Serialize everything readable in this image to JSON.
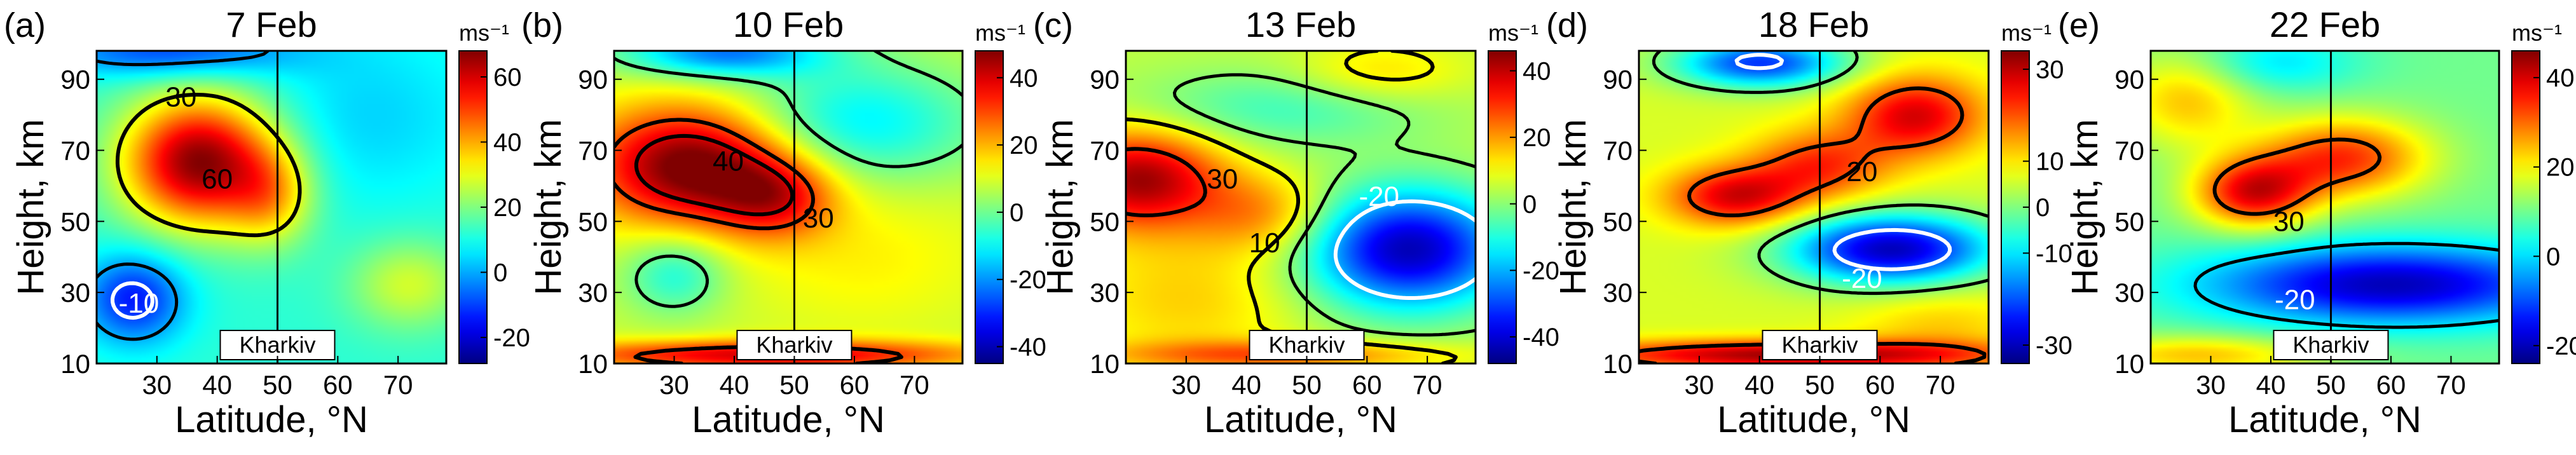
{
  "figure": {
    "x_axis_label": "Latitude, °N",
    "y_axis_label": "Height, km",
    "unit_label": "ms⁻¹",
    "station_label": "Kharkiv"
  },
  "chart_data": [
    {
      "type": "heatmap",
      "panel": "(a)",
      "title": "7 Feb",
      "xlabel": "Latitude, °N",
      "ylabel": "Height, km",
      "xlim": [
        20,
        78
      ],
      "ylim": [
        10,
        98
      ],
      "xticks": [
        30,
        40,
        50,
        60,
        70
      ],
      "yticks": [
        10,
        30,
        50,
        70,
        90
      ],
      "marker_latitude": 50,
      "marker_label": "Kharkiv",
      "colorbar": {
        "unit": "ms⁻¹",
        "min": -28,
        "max": 68,
        "ticks": [
          -20,
          0,
          20,
          40,
          60
        ]
      },
      "background": 12,
      "features": [
        {
          "lat": 37,
          "h": 67,
          "sx": 9,
          "sy": 13,
          "amp": 56
        },
        {
          "lat": 49,
          "h": 57,
          "sx": 5,
          "sy": 10,
          "amp": 20
        },
        {
          "lat": 26,
          "h": 28,
          "sx": 6,
          "sy": 9,
          "amp": -26
        },
        {
          "lat": 32,
          "h": 98,
          "sx": 14,
          "sy": 5,
          "amp": -22
        },
        {
          "lat": 72,
          "h": 32,
          "sx": 7,
          "sy": 9,
          "amp": 16
        },
        {
          "lat": 65,
          "h": 80,
          "sx": 14,
          "sy": 18,
          "amp": -8
        }
      ],
      "contour_levels": [
        {
          "value": 30,
          "style": "solid",
          "color": "black"
        },
        {
          "value": 0,
          "style": "dashed",
          "color": "black"
        },
        {
          "value": -10,
          "style": "solid",
          "color": "white"
        }
      ],
      "contour_labels": [
        {
          "text": "30",
          "lat": 34,
          "h": 85,
          "color": "black"
        },
        {
          "text": "60",
          "lat": 40,
          "h": 62,
          "color": "black"
        },
        {
          "text": "-10",
          "lat": 27,
          "h": 27,
          "color": "white"
        }
      ]
    },
    {
      "type": "heatmap",
      "panel": "(b)",
      "title": "10 Feb",
      "xlabel": "Latitude, °N",
      "ylabel": "Height, km",
      "xlim": [
        20,
        78
      ],
      "ylim": [
        10,
        98
      ],
      "xticks": [
        30,
        40,
        50,
        60,
        70
      ],
      "yticks": [
        10,
        30,
        50,
        70,
        90
      ],
      "marker_latitude": 50,
      "marker_label": "Kharkiv",
      "colorbar": {
        "unit": "ms⁻¹",
        "min": -45,
        "max": 48,
        "ticks": [
          -40,
          -20,
          0,
          20,
          40
        ]
      },
      "background": 8,
      "features": [
        {
          "lat": 33,
          "h": 66,
          "sx": 12,
          "sy": 12,
          "amp": 44
        },
        {
          "lat": 47,
          "h": 57,
          "sx": 7,
          "sy": 8,
          "amp": 22
        },
        {
          "lat": 60,
          "h": 78,
          "sx": 15,
          "sy": 12,
          "amp": -20
        },
        {
          "lat": 30,
          "h": 35,
          "sx": 6,
          "sy": 8,
          "amp": -16
        },
        {
          "lat": 45,
          "h": 12,
          "sx": 25,
          "sy": 3,
          "amp": 32
        },
        {
          "lat": 62,
          "h": 40,
          "sx": 15,
          "sy": 15,
          "amp": 6
        },
        {
          "lat": 38,
          "h": 98,
          "sx": 12,
          "sy": 5,
          "amp": -30
        }
      ],
      "contour_levels": [
        {
          "value": 40,
          "style": "solid",
          "color": "black"
        },
        {
          "value": 30,
          "style": "solid",
          "color": "black"
        },
        {
          "value": 0,
          "style": "dashed",
          "color": "black"
        }
      ],
      "contour_labels": [
        {
          "text": "40",
          "lat": 39,
          "h": 67,
          "color": "black"
        },
        {
          "text": "30",
          "lat": 54,
          "h": 51,
          "color": "black"
        }
      ]
    },
    {
      "type": "heatmap",
      "panel": "(c)",
      "title": "13 Feb",
      "xlabel": "Latitude, °N",
      "ylabel": "Height, km",
      "xlim": [
        20,
        78
      ],
      "ylim": [
        10,
        98
      ],
      "xticks": [
        30,
        40,
        50,
        60,
        70
      ],
      "yticks": [
        10,
        30,
        50,
        70,
        90
      ],
      "marker_latitude": 50,
      "marker_label": "Kharkiv",
      "colorbar": {
        "unit": "ms⁻¹",
        "min": -48,
        "max": 46,
        "ticks": [
          -40,
          -20,
          0,
          20,
          40
        ]
      },
      "background": 5,
      "features": [
        {
          "lat": 22,
          "h": 62,
          "sx": 10,
          "sy": 10,
          "amp": 38
        },
        {
          "lat": 43,
          "h": 52,
          "sx": 8,
          "sy": 8,
          "amp": 16
        },
        {
          "lat": 67,
          "h": 42,
          "sx": 12,
          "sy": 12,
          "amp": -48
        },
        {
          "lat": 30,
          "h": 28,
          "sx": 14,
          "sy": 14,
          "amp": 10
        },
        {
          "lat": 45,
          "h": 12,
          "sx": 20,
          "sy": 3,
          "amp": 20
        },
        {
          "lat": 62,
          "h": 92,
          "sx": 10,
          "sy": 6,
          "amp": 10
        },
        {
          "lat": 45,
          "h": 82,
          "sx": 18,
          "sy": 8,
          "amp": -12
        }
      ],
      "contour_levels": [
        {
          "value": 30,
          "style": "solid",
          "color": "black"
        },
        {
          "value": 10,
          "style": "solid",
          "color": "black"
        },
        {
          "value": 0,
          "style": "dashed",
          "color": "black"
        },
        {
          "value": -20,
          "style": "solid",
          "color": "white"
        }
      ],
      "contour_labels": [
        {
          "text": "30",
          "lat": 36,
          "h": 62,
          "color": "black"
        },
        {
          "text": "10",
          "lat": 43,
          "h": 44,
          "color": "black"
        },
        {
          "text": "-20",
          "lat": 62,
          "h": 57,
          "color": "white"
        }
      ]
    },
    {
      "type": "heatmap",
      "panel": "(d)",
      "title": "18 Feb",
      "xlabel": "Latitude, °N",
      "ylabel": "Height, km",
      "xlim": [
        20,
        78
      ],
      "ylim": [
        10,
        98
      ],
      "xticks": [
        30,
        40,
        50,
        60,
        70
      ],
      "yticks": [
        10,
        30,
        50,
        70,
        90
      ],
      "marker_latitude": 50,
      "marker_label": "Kharkiv",
      "colorbar": {
        "unit": "ms⁻¹",
        "min": -34,
        "max": 34,
        "ticks": [
          -30,
          -10,
          0,
          10,
          30
        ]
      },
      "background": 6,
      "features": [
        {
          "lat": 36,
          "h": 57,
          "sx": 8,
          "sy": 6,
          "amp": 22
        },
        {
          "lat": 50,
          "h": 66,
          "sx": 8,
          "sy": 7,
          "amp": 16
        },
        {
          "lat": 66,
          "h": 80,
          "sx": 8,
          "sy": 8,
          "amp": 22
        },
        {
          "lat": 62,
          "h": 42,
          "sx": 12,
          "sy": 7,
          "amp": -36
        },
        {
          "lat": 45,
          "h": 12,
          "sx": 25,
          "sy": 3,
          "amp": 26
        },
        {
          "lat": 40,
          "h": 95,
          "sx": 10,
          "sy": 5,
          "amp": -28
        },
        {
          "lat": 70,
          "h": 20,
          "sx": 10,
          "sy": 8,
          "amp": 6
        }
      ],
      "contour_levels": [
        {
          "value": 20,
          "style": "solid",
          "color": "black"
        },
        {
          "value": 0,
          "style": "dashed",
          "color": "black"
        },
        {
          "value": -20,
          "style": "solid",
          "color": "white"
        }
      ],
      "contour_labels": [
        {
          "text": "20",
          "lat": 57,
          "h": 64,
          "color": "black"
        },
        {
          "text": "-20",
          "lat": 57,
          "h": 34,
          "color": "white"
        }
      ]
    },
    {
      "type": "heatmap",
      "panel": "(e)",
      "title": "22 Feb",
      "xlabel": "Latitude, °N",
      "ylabel": "Height, km",
      "xlim": [
        20,
        78
      ],
      "ylim": [
        10,
        98
      ],
      "xticks": [
        30,
        40,
        50,
        60,
        70
      ],
      "yticks": [
        10,
        30,
        50,
        70,
        90
      ],
      "marker_latitude": 50,
      "marker_label": "Kharkiv",
      "colorbar": {
        "unit": "ms⁻¹",
        "min": -24,
        "max": 46,
        "ticks": [
          -20,
          0,
          20,
          40
        ]
      },
      "background": 10,
      "features": [
        {
          "lat": 37,
          "h": 58,
          "sx": 7,
          "sy": 7,
          "amp": 28
        },
        {
          "lat": 52,
          "h": 68,
          "sx": 10,
          "sy": 8,
          "amp": 24
        },
        {
          "lat": 60,
          "h": 32,
          "sx": 22,
          "sy": 8,
          "amp": -30
        },
        {
          "lat": 28,
          "h": 12,
          "sx": 14,
          "sy": 4,
          "amp": 14
        },
        {
          "lat": 40,
          "h": 95,
          "sx": 10,
          "sy": 6,
          "amp": -10
        },
        {
          "lat": 26,
          "h": 85,
          "sx": 8,
          "sy": 10,
          "amp": 14
        }
      ],
      "contour_levels": [
        {
          "value": 30,
          "style": "solid",
          "color": "black"
        },
        {
          "value": 0,
          "style": "dashed",
          "color": "black"
        },
        {
          "value": -20,
          "style": "solid",
          "color": "white"
        }
      ],
      "contour_labels": [
        {
          "text": "30",
          "lat": 43,
          "h": 50,
          "color": "black"
        },
        {
          "text": "-20",
          "lat": 44,
          "h": 28,
          "color": "white"
        }
      ]
    }
  ]
}
